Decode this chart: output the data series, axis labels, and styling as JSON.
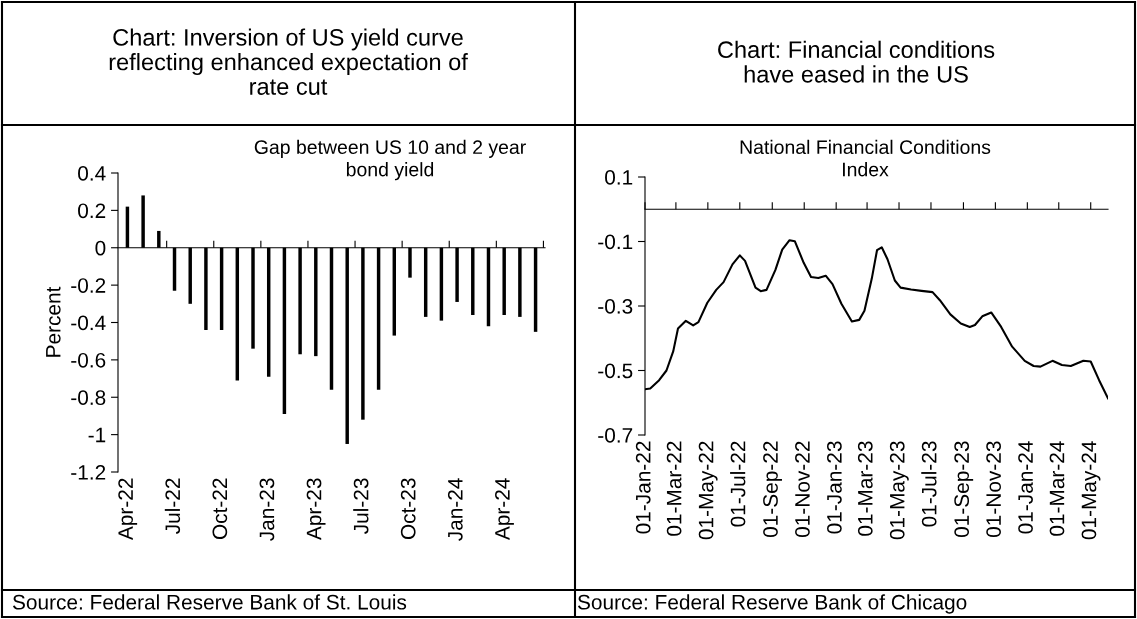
{
  "chart_data": [
    {
      "type": "bar",
      "title": "Chart: Inversion of US yield curve\nreflecting enhanced expectation of\nrate cut",
      "subtitle": "Gap between US 10 and 2 year\nbond yield",
      "ylabel": "Percent",
      "categories": [
        "Apr-22",
        null,
        null,
        "Jul-22",
        null,
        null,
        "Oct-22",
        null,
        null,
        "Jan-23",
        null,
        null,
        "Apr-23",
        null,
        null,
        "Jul-23",
        null,
        null,
        "Oct-23",
        null,
        null,
        "Jan-24",
        null,
        null,
        "Apr-24",
        null,
        null
      ],
      "values": [
        0.22,
        0.28,
        0.09,
        -0.23,
        -0.3,
        -0.44,
        -0.44,
        -0.71,
        -0.54,
        -0.69,
        -0.89,
        -0.57,
        -0.58,
        -0.76,
        -1.05,
        -0.92,
        -0.76,
        -0.47,
        -0.16,
        -0.37,
        -0.39,
        -0.29,
        -0.36,
        -0.42,
        -0.36,
        -0.37,
        -0.45
      ],
      "color": "#000000",
      "ylim": [
        -1.2,
        0.4
      ],
      "yticks": [
        -1.2,
        -1,
        -0.8,
        -0.6,
        -0.4,
        -0.2,
        0,
        0.2,
        0.4
      ],
      "annotations": [
        "Source: Federal Reserve Bank of St. Louis"
      ]
    },
    {
      "type": "line",
      "title": "Chart: Financial conditions\nhave eased in the US",
      "subtitle": "National Financial Conditions\nIndex",
      "x": [
        "2022-01-01",
        "2022-01-11",
        "2022-01-28",
        "2022-02-11",
        "2022-02-24",
        "2022-03-05",
        "2022-03-20",
        "2022-04-03",
        "2022-04-13",
        "2022-04-30",
        "2022-05-17",
        "2022-05-31",
        "2022-06-17",
        "2022-07-01",
        "2022-07-11",
        "2022-07-31",
        "2022-08-10",
        "2022-08-21",
        "2022-09-07",
        "2022-09-20",
        "2022-10-04",
        "2022-10-14",
        "2022-10-31",
        "2022-11-14",
        "2022-11-28",
        "2022-12-12",
        "2022-12-25",
        "2023-01-11",
        "2023-01-31",
        "2023-02-14",
        "2023-02-24",
        "2023-03-10",
        "2023-03-20",
        "2023-03-29",
        "2023-04-09",
        "2023-04-23",
        "2023-05-04",
        "2023-05-24",
        "2023-06-13",
        "2023-07-04",
        "2023-07-18",
        "2023-08-07",
        "2023-08-27",
        "2023-09-13",
        "2023-09-23",
        "2023-10-07",
        "2023-10-24",
        "2023-11-12",
        "2023-12-03",
        "2023-12-27",
        "2024-01-13",
        "2024-01-26",
        "2024-02-18",
        "2024-03-07",
        "2024-03-24",
        "2024-04-17",
        "2024-05-01",
        "2024-05-17",
        "2024-06-03"
      ],
      "values": [
        -0.558,
        -0.556,
        -0.53,
        -0.5,
        -0.44,
        -0.37,
        -0.346,
        -0.36,
        -0.35,
        -0.29,
        -0.25,
        -0.226,
        -0.171,
        -0.143,
        -0.16,
        -0.243,
        -0.254,
        -0.25,
        -0.188,
        -0.125,
        -0.096,
        -0.099,
        -0.166,
        -0.21,
        -0.213,
        -0.206,
        -0.232,
        -0.293,
        -0.348,
        -0.343,
        -0.315,
        -0.215,
        -0.127,
        -0.118,
        -0.155,
        -0.221,
        -0.243,
        -0.249,
        -0.253,
        -0.257,
        -0.282,
        -0.326,
        -0.354,
        -0.365,
        -0.359,
        -0.332,
        -0.32,
        -0.365,
        -0.426,
        -0.47,
        -0.486,
        -0.488,
        -0.47,
        -0.483,
        -0.486,
        -0.47,
        -0.472,
        -0.53,
        -0.586
      ],
      "color": "#000000",
      "marker": "none",
      "line_style": "solid",
      "xlim": [
        "2022-01-01",
        "2024-06-03"
      ],
      "xticks": [
        {
          "value": "2022-01-01",
          "label": "01-Jan-22"
        },
        {
          "value": "2022-03-01",
          "label": "01-Mar-22"
        },
        {
          "value": "2022-05-01",
          "label": "01-May-22"
        },
        {
          "value": "2022-07-01",
          "label": "01-Jul-22"
        },
        {
          "value": "2022-09-01",
          "label": "01-Sep-22"
        },
        {
          "value": "2022-11-01",
          "label": "01-Nov-22"
        },
        {
          "value": "2023-01-01",
          "label": "01-Jan-23"
        },
        {
          "value": "2023-03-01",
          "label": "01-Mar-23"
        },
        {
          "value": "2023-05-01",
          "label": "01-May-23"
        },
        {
          "value": "2023-07-01",
          "label": "01-Jul-23"
        },
        {
          "value": "2023-09-01",
          "label": "01-Sep-23"
        },
        {
          "value": "2023-11-01",
          "label": "01-Nov-23"
        },
        {
          "value": "2024-01-01",
          "label": "01-Jan-24"
        },
        {
          "value": "2024-03-01",
          "label": "01-Mar-24"
        },
        {
          "value": "2024-05-01",
          "label": "01-May-24"
        }
      ],
      "ylim": [
        -0.7,
        0.1
      ],
      "yticks": [
        -0.7,
        -0.5,
        -0.3,
        -0.1,
        0.1
      ],
      "annotations": [
        "Source: Federal Reserve Bank of Chicago"
      ]
    }
  ]
}
